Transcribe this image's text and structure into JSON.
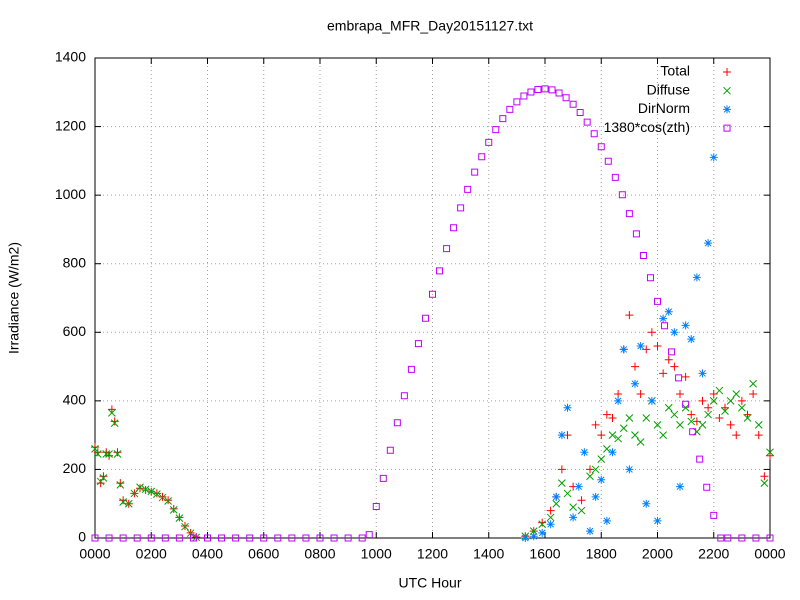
{
  "chart_data": {
    "type": "scatter",
    "title": "embrapa_MFR_Day20151127.txt",
    "xlabel": "UTC Hour",
    "ylabel": "Irradiance (W/m2)",
    "xlim": [
      0,
      24
    ],
    "ylim": [
      0,
      1400
    ],
    "xticks": [
      {
        "value": 0,
        "label": "0000"
      },
      {
        "value": 2,
        "label": "0200"
      },
      {
        "value": 4,
        "label": "0400"
      },
      {
        "value": 6,
        "label": "0600"
      },
      {
        "value": 8,
        "label": "0800"
      },
      {
        "value": 10,
        "label": "1000"
      },
      {
        "value": 12,
        "label": "1200"
      },
      {
        "value": 14,
        "label": "1400"
      },
      {
        "value": 16,
        "label": "1600"
      },
      {
        "value": 18,
        "label": "1800"
      },
      {
        "value": 20,
        "label": "2000"
      },
      {
        "value": 22,
        "label": "2200"
      },
      {
        "value": 24,
        "label": "0000"
      }
    ],
    "yticks": [
      0,
      200,
      400,
      600,
      800,
      1000,
      1200,
      1400
    ],
    "grid": true,
    "legend": "top-right",
    "series": [
      {
        "name": "Total",
        "color": "#ff0000",
        "marker": "plus",
        "x": [
          0,
          0.1,
          0.2,
          0.3,
          0.4,
          0.5,
          0.6,
          0.7,
          0.8,
          0.9,
          1.0,
          1.2,
          1.4,
          1.6,
          1.8,
          2.0,
          2.2,
          2.4,
          2.6,
          2.8,
          3.0,
          3.2,
          3.4,
          3.6,
          15.3,
          15.6,
          15.9,
          16.2,
          16.4,
          16.6,
          16.8,
          17,
          17.3,
          17.6,
          17.8,
          18,
          18.2,
          18.4,
          18.6,
          18.8,
          19,
          19.2,
          19.4,
          19.6,
          19.8,
          20,
          20.2,
          20.4,
          20.6,
          20.8,
          21,
          21.2,
          21.4,
          21.6,
          21.8,
          22,
          22.2,
          22.4,
          22.6,
          22.8,
          23,
          23.2,
          23.4,
          23.6,
          23.8,
          24
        ],
        "values": [
          265,
          250,
          160,
          180,
          250,
          240,
          375,
          340,
          250,
          160,
          110,
          100,
          130,
          145,
          140,
          135,
          130,
          120,
          110,
          85,
          60,
          35,
          15,
          3,
          5,
          20,
          45,
          80,
          120,
          200,
          300,
          150,
          110,
          200,
          330,
          300,
          360,
          350,
          420,
          550,
          650,
          500,
          420,
          550,
          600,
          560,
          480,
          520,
          500,
          420,
          470,
          360,
          340,
          400,
          380,
          420,
          350,
          380,
          330,
          300,
          400,
          360,
          420,
          300,
          180,
          240
        ]
      },
      {
        "name": "Diffuse",
        "color": "#00a000",
        "marker": "cross",
        "x": [
          0,
          0.1,
          0.2,
          0.3,
          0.4,
          0.5,
          0.6,
          0.7,
          0.8,
          0.9,
          1.0,
          1.2,
          1.4,
          1.6,
          1.8,
          2.0,
          2.2,
          2.4,
          2.6,
          2.8,
          3.0,
          3.2,
          3.4,
          3.6,
          15.3,
          15.6,
          15.9,
          16.2,
          16.4,
          16.6,
          16.8,
          17,
          17.3,
          17.6,
          17.8,
          18,
          18.2,
          18.4,
          18.6,
          18.8,
          19,
          19.2,
          19.4,
          19.6,
          19.8,
          20,
          20.2,
          20.4,
          20.6,
          20.8,
          21,
          21.2,
          21.4,
          21.6,
          21.8,
          22,
          22.2,
          22.4,
          22.6,
          22.8,
          23,
          23.2,
          23.4,
          23.6,
          23.8,
          24
        ],
        "values": [
          260,
          245,
          165,
          175,
          245,
          245,
          365,
          335,
          245,
          155,
          105,
          100,
          130,
          148,
          142,
          136,
          128,
          118,
          108,
          82,
          58,
          33,
          14,
          2,
          5,
          20,
          40,
          60,
          100,
          160,
          130,
          90,
          80,
          180,
          200,
          230,
          260,
          300,
          290,
          320,
          350,
          300,
          280,
          350,
          400,
          330,
          300,
          380,
          360,
          330,
          380,
          340,
          310,
          330,
          360,
          400,
          430,
          370,
          400,
          420,
          380,
          350,
          450,
          330,
          160,
          250
        ]
      },
      {
        "name": "DirNorm",
        "color": "#0080ff",
        "marker": "star",
        "x": [
          15.3,
          15.6,
          15.9,
          16.2,
          16.4,
          16.6,
          16.8,
          17,
          17.2,
          17.4,
          17.6,
          17.8,
          18,
          18.2,
          18.4,
          18.6,
          18.8,
          19,
          19.2,
          19.4,
          19.6,
          19.8,
          20,
          20.2,
          20.4,
          20.6,
          20.8,
          21,
          21.2,
          21.4,
          21.6,
          21.8,
          22
        ],
        "values": [
          0,
          5,
          15,
          40,
          120,
          300,
          380,
          60,
          150,
          250,
          20,
          120,
          170,
          50,
          250,
          400,
          550,
          200,
          450,
          560,
          100,
          400,
          50,
          640,
          660,
          600,
          150,
          620,
          580,
          760,
          480,
          860,
          1110
        ]
      },
      {
        "name": "1380*cos(zth)",
        "color": "#c000ff",
        "marker": "square",
        "x": [
          0,
          0.5,
          1,
          1.5,
          2,
          2.5,
          3,
          3.5,
          4,
          4.5,
          5,
          5.5,
          6,
          6.5,
          7,
          7.5,
          8,
          8.5,
          9,
          9.5,
          9.75,
          10,
          10.25,
          10.5,
          10.75,
          11,
          11.25,
          11.5,
          11.75,
          12,
          12.25,
          12.5,
          12.75,
          13,
          13.25,
          13.5,
          13.75,
          14,
          14.25,
          14.5,
          14.75,
          15,
          15.25,
          15.5,
          15.75,
          16,
          16.25,
          16.5,
          16.75,
          17,
          17.25,
          17.5,
          17.75,
          18,
          18.25,
          18.5,
          18.75,
          19,
          19.25,
          19.5,
          19.75,
          20,
          20.25,
          20.5,
          20.75,
          21,
          21.25,
          21.5,
          21.75,
          22,
          22.25,
          22.5,
          23,
          23.5,
          24
        ],
        "values": [
          0,
          0,
          0,
          0,
          0,
          0,
          0,
          0,
          0,
          0,
          0,
          0,
          0,
          0,
          0,
          0,
          0,
          0,
          0,
          0,
          10,
          92,
          174,
          256,
          336,
          415,
          492,
          567,
          641,
          711,
          779,
          844,
          905,
          963,
          1017,
          1067,
          1112,
          1154,
          1191,
          1223,
          1250,
          1272,
          1289,
          1301,
          1308,
          1310,
          1307,
          1298,
          1284,
          1265,
          1241,
          1213,
          1179,
          1141,
          1099,
          1052,
          1001,
          946,
          887,
          824,
          759,
          690,
          619,
          543,
          467,
          390,
          310,
          230,
          148,
          66,
          0,
          0,
          0,
          0,
          0
        ]
      }
    ]
  }
}
